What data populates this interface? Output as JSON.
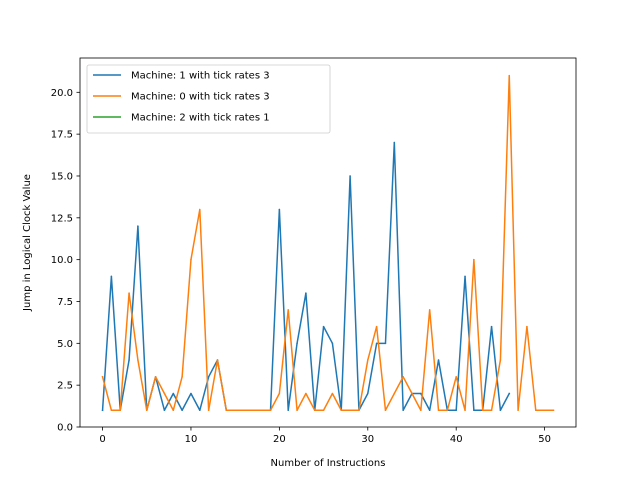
{
  "chart_data": {
    "type": "line",
    "title": "",
    "xlabel": "Number of Instructions",
    "ylabel": "Jump in Logical Clock Value",
    "xlim": [
      -2.55,
      53.55
    ],
    "ylim": [
      0,
      22.05
    ],
    "xticks": [
      0,
      10,
      20,
      30,
      40,
      50
    ],
    "yticks": [
      0.0,
      2.5,
      5.0,
      7.5,
      10.0,
      12.5,
      15.0,
      17.5,
      20.0
    ],
    "grid": false,
    "legend_position": "upper-left",
    "series": [
      {
        "name": "Machine: 1 with tick rates 3",
        "color": "#1f77b4",
        "values": [
          1,
          9,
          1,
          4,
          12,
          1,
          3,
          1,
          2,
          1,
          2,
          1,
          3,
          4,
          1,
          1,
          1,
          1,
          1,
          1,
          13,
          1,
          5,
          8,
          1,
          6,
          5,
          1,
          15,
          1,
          2,
          5,
          5,
          17,
          1,
          2,
          2,
          1,
          4,
          1,
          1,
          9,
          1,
          1,
          6,
          1,
          2
        ]
      },
      {
        "name": "Machine: 0 with tick rates 3",
        "color": "#ff7f0e",
        "values": [
          3,
          1,
          1,
          8,
          4,
          1,
          3,
          2,
          1,
          3,
          10,
          13,
          1,
          4,
          1,
          1,
          1,
          1,
          1,
          1,
          2,
          7,
          1,
          2,
          1,
          1,
          2,
          1,
          1,
          1,
          4,
          6,
          1,
          2,
          3,
          2,
          1,
          7,
          1,
          1,
          3,
          1,
          10,
          1,
          1,
          4,
          21,
          1,
          6,
          1,
          1,
          1
        ]
      },
      {
        "name": "Machine: 2 with tick rates 1",
        "color": "#2ca02c",
        "values": []
      }
    ]
  }
}
